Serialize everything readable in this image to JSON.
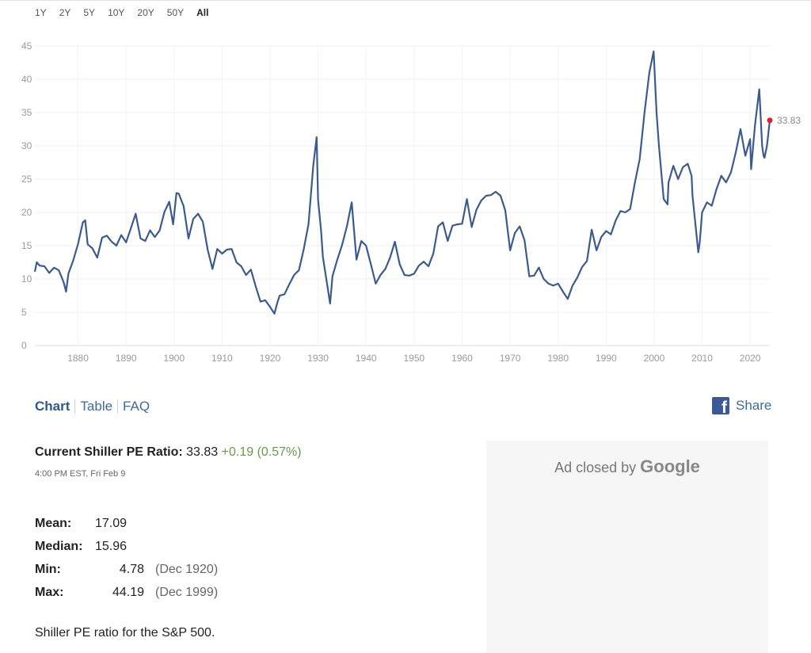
{
  "range_buttons": [
    {
      "label": "1Y",
      "active": false
    },
    {
      "label": "2Y",
      "active": false
    },
    {
      "label": "5Y",
      "active": false
    },
    {
      "label": "10Y",
      "active": false
    },
    {
      "label": "20Y",
      "active": false
    },
    {
      "label": "50Y",
      "active": false
    },
    {
      "label": "All",
      "active": true
    }
  ],
  "chart_data": {
    "type": "line",
    "title": "",
    "xlabel": "",
    "ylabel": "",
    "xlim": [
      1871,
      2024.1
    ],
    "ylim": [
      0,
      45
    ],
    "x_ticks": [
      "1880",
      "1890",
      "1900",
      "1910",
      "1920",
      "1930",
      "1940",
      "1950",
      "1960",
      "1970",
      "1980",
      "1990",
      "2000",
      "2010",
      "2020"
    ],
    "y_ticks": [
      "0",
      "5",
      "10",
      "15",
      "20",
      "25",
      "30",
      "35",
      "40",
      "45"
    ],
    "grid": true,
    "line_color": "#3b5b8f",
    "last_point_color": "#e0202e",
    "last_value_label": "33.83",
    "series": [
      {
        "x": [
          1871,
          1871.4,
          1872,
          1873,
          1874,
          1875,
          1876,
          1877,
          1877.5,
          1878,
          1879,
          1880,
          1881,
          1881.5,
          1882,
          1883,
          1884,
          1885,
          1886,
          1887,
          1888,
          1889,
          1890,
          1891,
          1892,
          1893,
          1894,
          1895,
          1896,
          1897,
          1898,
          1899,
          1899.8,
          1900.5,
          1901,
          1902,
          1903,
          1904,
          1905,
          1906,
          1907,
          1908,
          1909,
          1910,
          1911,
          1912,
          1913,
          1914,
          1915,
          1916,
          1917,
          1918,
          1919,
          1920,
          1920.9,
          1921.5,
          1922,
          1923,
          1924,
          1925,
          1926,
          1927,
          1928,
          1929,
          1929.7,
          1930,
          1930.6,
          1931,
          1932,
          1932.5,
          1933,
          1934,
          1935,
          1936,
          1937,
          1938,
          1939,
          1940,
          1941,
          1942,
          1943,
          1944,
          1945,
          1946,
          1947,
          1948,
          1949,
          1950,
          1951,
          1952,
          1953,
          1954,
          1955,
          1956,
          1957,
          1958,
          1959,
          1960,
          1961,
          1962,
          1963,
          1964,
          1965,
          1966,
          1967,
          1968,
          1969,
          1970,
          1971,
          1972,
          1973,
          1974,
          1975,
          1976,
          1977,
          1978,
          1979,
          1980,
          1981,
          1982,
          1983,
          1984,
          1985,
          1986,
          1987,
          1988,
          1989,
          1990,
          1991,
          1992,
          1993,
          1994,
          1995,
          1996,
          1997,
          1998,
          1999,
          1999.9,
          2000.5,
          2001,
          2002,
          2002.8,
          2003,
          2004,
          2005,
          2006,
          2007,
          2007.8,
          2008,
          2009.2,
          2009.5,
          2010,
          2011,
          2012,
          2013,
          2014,
          2015,
          2016,
          2017,
          2018,
          2019,
          2020,
          2020.2,
          2021,
          2021.9,
          2022.5,
          2022.8,
          2023,
          2023.5,
          2024.1
        ],
        "values": [
          11.1,
          12.5,
          12.0,
          11.9,
          10.9,
          11.7,
          11.3,
          9.5,
          8.1,
          10.8,
          12.8,
          15.3,
          18.5,
          18.8,
          15.2,
          14.6,
          13.2,
          16.2,
          16.5,
          15.6,
          15.0,
          16.6,
          15.5,
          17.6,
          19.8,
          16.1,
          15.7,
          17.3,
          16.3,
          17.3,
          20.1,
          21.6,
          18.2,
          22.9,
          22.8,
          20.9,
          16.1,
          19.0,
          19.8,
          18.6,
          14.4,
          11.5,
          14.5,
          13.8,
          14.4,
          14.5,
          12.5,
          11.9,
          10.6,
          11.4,
          8.9,
          6.6,
          6.8,
          5.8,
          4.78,
          6.4,
          7.5,
          7.7,
          9.2,
          10.6,
          11.3,
          14.4,
          18.2,
          27.1,
          31.3,
          21.9,
          17.4,
          13.3,
          8.7,
          6.3,
          10.4,
          12.9,
          15.1,
          17.9,
          21.5,
          12.9,
          15.7,
          15.0,
          12.2,
          9.3,
          10.6,
          11.5,
          13.2,
          15.6,
          12.2,
          10.6,
          10.5,
          10.8,
          12.0,
          12.6,
          11.9,
          13.8,
          17.9,
          18.5,
          15.7,
          18.0,
          18.2,
          18.3,
          22.0,
          17.8,
          20.4,
          21.8,
          22.5,
          22.6,
          23.1,
          22.5,
          20.3,
          14.3,
          16.9,
          17.9,
          15.8,
          10.4,
          10.5,
          11.7,
          10.0,
          9.3,
          9.0,
          9.3,
          8.1,
          7.0,
          9.0,
          10.2,
          11.8,
          12.7,
          17.4,
          14.3,
          16.3,
          17.2,
          16.7,
          18.8,
          20.2,
          20.0,
          20.5,
          24.5,
          28.0,
          35.0,
          41.0,
          44.19,
          35.0,
          30.0,
          22.0,
          21.2,
          24.5,
          27.0,
          25.0,
          26.8,
          27.3,
          25.5,
          22.5,
          14.0,
          15.5,
          20.0,
          21.5,
          21.0,
          23.5,
          25.5,
          24.5,
          26.0,
          29.0,
          32.5,
          28.5,
          31.0,
          26.5,
          33.0,
          38.5,
          30.0,
          28.5,
          28.2,
          30.0,
          33.83
        ]
      }
    ]
  },
  "view_tabs": [
    {
      "label": "Chart",
      "active": true
    },
    {
      "label": "Table",
      "active": false
    },
    {
      "label": "FAQ",
      "active": false
    }
  ],
  "share": {
    "label": "Share",
    "icon": "facebook-icon",
    "color": "#3b5998"
  },
  "current": {
    "label": "Current Shiller PE Ratio:",
    "value": "33.83",
    "change": "+0.19 (0.57%)",
    "timestamp": "4:00 PM EST, Fri Feb 9"
  },
  "stats": [
    {
      "label": "Mean:",
      "value": "17.09",
      "date": ""
    },
    {
      "label": "Median:",
      "value": "15.96",
      "date": ""
    },
    {
      "label": "Min:",
      "value": "4.78",
      "date": "(Dec 1920)"
    },
    {
      "label": "Max:",
      "value": "44.19",
      "date": "(Dec 1999)"
    }
  ],
  "description": "Shiller PE ratio for the S&P 500.",
  "ad": {
    "prefix": "Ad closed by",
    "brand": "Google"
  }
}
